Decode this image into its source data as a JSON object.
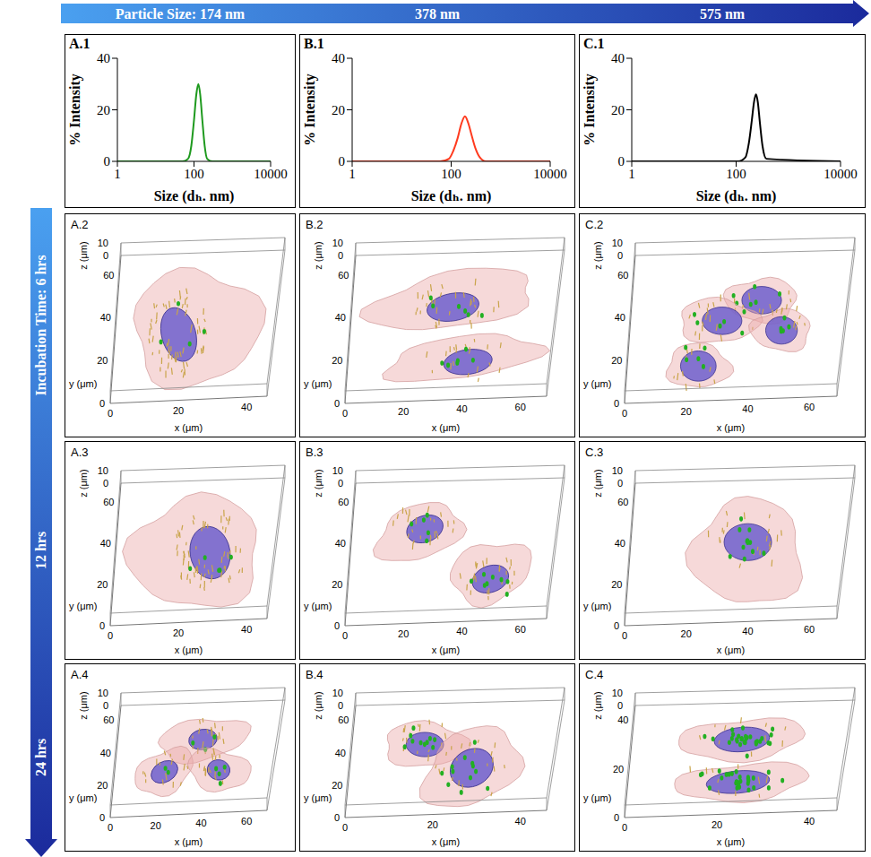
{
  "header": {
    "particle_sizes": [
      "Particle Size: 174 nm",
      "378 nm",
      "575 nm"
    ]
  },
  "incubation_times": [
    "Incubation Time: 6 hrs",
    "12 hrs",
    "24 hrs"
  ],
  "chart_data": [
    {
      "type": "line",
      "label": "A.1",
      "x_label": "Size (dₕ. nm)",
      "y_label": "% Intensity",
      "log": "x",
      "xlim": [
        1,
        10000
      ],
      "xticks": [
        1,
        100,
        10000
      ],
      "ylim": [
        0,
        40
      ],
      "yticks": [
        0,
        20,
        40
      ],
      "grid": false,
      "color": "#1f9a1f",
      "x": [
        1,
        50,
        70,
        85,
        100,
        115,
        130,
        145,
        165,
        190,
        220,
        300,
        10000
      ],
      "values": [
        0,
        0,
        1,
        6,
        16,
        26,
        30,
        26,
        16,
        6,
        1,
        0,
        0
      ]
    },
    {
      "type": "line",
      "label": "B.1",
      "x_label": "Size (dₕ. nm)",
      "y_label": "% Intensity",
      "log": "x",
      "xlim": [
        1,
        10000
      ],
      "xticks": [
        1,
        100,
        10000
      ],
      "ylim": [
        0,
        40
      ],
      "yticks": [
        0,
        20,
        40
      ],
      "grid": false,
      "color": "#ff3b1f",
      "x": [
        1,
        60,
        90,
        110,
        135,
        160,
        190,
        220,
        260,
        310,
        380,
        500,
        10000
      ],
      "values": [
        0,
        0,
        1,
        4,
        9,
        14.5,
        17.5,
        15,
        10,
        5,
        1.5,
        0,
        0
      ]
    },
    {
      "type": "line",
      "label": "C.1",
      "x_label": "Size (dₕ. nm)",
      "y_label": "% Intensity",
      "log": "x",
      "xlim": [
        1,
        10000
      ],
      "xticks": [
        1,
        100,
        10000
      ],
      "ylim": [
        0,
        40
      ],
      "yticks": [
        0,
        20,
        40
      ],
      "grid": false,
      "color": "#000000",
      "x": [
        1,
        110,
        150,
        175,
        200,
        220,
        240,
        260,
        285,
        320,
        380,
        10000
      ],
      "values": [
        0,
        0,
        1.5,
        7,
        16,
        23,
        26,
        23,
        15,
        6,
        1,
        0
      ]
    }
  ],
  "axis_titles": {
    "x": "x (μm)",
    "y": "y (μm)",
    "z": "z (μm)"
  },
  "panels": [
    {
      "label": "A.2",
      "x_ticks": [
        0,
        20,
        40
      ],
      "y_ticks": [
        60,
        40,
        20,
        0
      ],
      "z_ticks": [
        10,
        0
      ]
    },
    {
      "label": "B.2",
      "x_ticks": [
        0,
        20,
        40,
        60
      ],
      "y_ticks": [
        60,
        40,
        20,
        0
      ],
      "z_ticks": [
        10,
        0
      ]
    },
    {
      "label": "C.2",
      "x_ticks": [
        0,
        20,
        40,
        60
      ],
      "y_ticks": [
        60,
        40,
        20,
        0
      ],
      "z_ticks": [
        10,
        0
      ]
    },
    {
      "label": "A.3",
      "x_ticks": [
        0,
        20,
        40
      ],
      "y_ticks": [
        60,
        40,
        20,
        0
      ],
      "z_ticks": [
        10,
        0
      ]
    },
    {
      "label": "B.3",
      "x_ticks": [
        0,
        20,
        40,
        60
      ],
      "y_ticks": [
        60,
        40,
        20,
        0
      ],
      "z_ticks": [
        10,
        0
      ]
    },
    {
      "label": "C.3",
      "x_ticks": [
        0,
        20,
        40,
        60
      ],
      "y_ticks": [
        60,
        40,
        20,
        0
      ],
      "z_ticks": [
        10,
        0
      ]
    },
    {
      "label": "A.4",
      "x_ticks": [
        0,
        20,
        40,
        60
      ],
      "y_ticks": [
        60,
        40,
        20,
        0
      ],
      "z_ticks": [
        10,
        0
      ]
    },
    {
      "label": "B.4",
      "x_ticks": [
        0,
        20,
        40
      ],
      "y_ticks": [
        60,
        40,
        20,
        0
      ],
      "z_ticks": [
        10,
        0
      ]
    },
    {
      "label": "C.4",
      "x_ticks": [
        0,
        20,
        40
      ],
      "y_ticks": [
        40,
        20,
        0
      ],
      "z_ticks": [
        10,
        0
      ]
    }
  ]
}
